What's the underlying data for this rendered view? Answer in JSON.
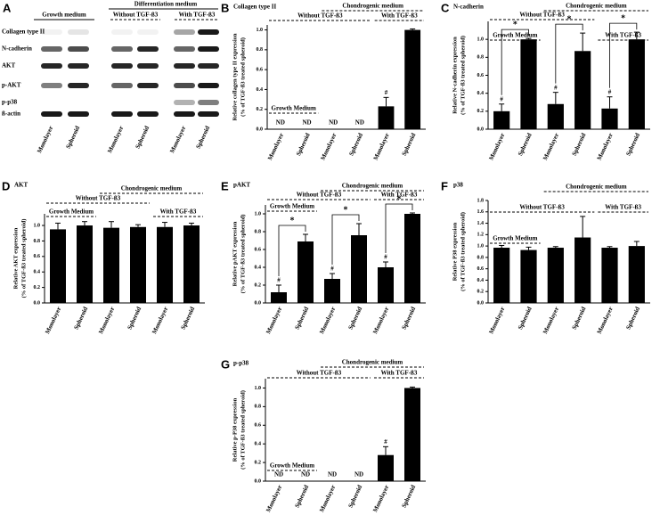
{
  "blot": {
    "panel": "A",
    "headers": {
      "growth": "Growth medium",
      "diff": "Differentiation medium",
      "without": "Without TGF-ß3",
      "with": "With TGF-ß3"
    },
    "rows": [
      "Collagen type II",
      "N-cadherin",
      "AKT",
      "p-AKT",
      "p-p38",
      "ß-actin"
    ],
    "lanes": [
      "Monolayer",
      "Spheroid",
      "Monolayer",
      "Spheroid",
      "Monolayer",
      "Spheroid"
    ]
  },
  "chart_data": [
    {
      "type": "bar",
      "panel": "B",
      "title": "Collagen type II",
      "ylabel": [
        "Relative collagen type II expression",
        "(% of TGF-ß3 treated spheroid)"
      ],
      "categories": [
        "Monolayer",
        "Spheroid",
        "Monolayer",
        "Spheroid",
        "Monolayer",
        "Spheroid"
      ],
      "values": [
        0,
        0,
        0,
        0,
        0.23,
        1.0
      ],
      "errors": [
        0,
        0,
        0,
        0,
        0.09,
        0.01
      ],
      "color": "#000000",
      "ylim": [
        0,
        1.05
      ],
      "yticks": [
        {
          "value": 0,
          "label": "0.0"
        },
        0.2,
        0.4,
        0.6,
        0.8,
        {
          "value": 1,
          "label": "1.0"
        }
      ],
      "groups": {
        "growth": "Growth  Medium",
        "without": "Without TGF-ß3",
        "chondro": "Chondrogenic  medium",
        "with": "With TGF-ß3"
      },
      "bar_notes": [
        "ND",
        "ND",
        "ND",
        "ND",
        "#",
        null
      ],
      "pair_notes": [
        null,
        null,
        null
      ]
    },
    {
      "type": "bar",
      "panel": "C",
      "title": "N-cadherin",
      "ylabel": [
        "Relative N-cadherin expression",
        "(% of TGF-ß3 treated spheroid)"
      ],
      "categories": [
        "Monolayer",
        "Spheroid",
        "Monolayer",
        "Spheroid",
        "Monolayer",
        "Spheroid"
      ],
      "values": [
        0.2,
        1.0,
        0.28,
        0.87,
        0.23,
        1.0
      ],
      "errors": [
        0.08,
        0.01,
        0.13,
        0.2,
        0.13,
        0.08
      ],
      "color": "#000000",
      "ylim": [
        0,
        1.2
      ],
      "yticks": [
        {
          "value": 0,
          "label": "0.0"
        },
        0.2,
        0.4,
        0.6,
        0.8,
        {
          "value": 1,
          "label": "1.0"
        }
      ],
      "groups": {
        "growth": "Growth Medium",
        "without": "Without TGF-ß3",
        "chondro": "Chondrogenic  medium",
        "with": "With TGF-ß3"
      },
      "bar_notes": [
        "#",
        null,
        "#",
        null,
        "#",
        null
      ],
      "pair_notes": [
        "*",
        "*",
        "*"
      ]
    },
    {
      "type": "bar",
      "panel": "D",
      "title": "AKT",
      "ylabel": [
        "Relative AKT expression",
        "(% of TGF-ß3 treated spheroid)"
      ],
      "categories": [
        "Monolayer",
        "Spheroid",
        "Monolayer",
        "Spheroid",
        "Monolayer",
        "Spheroid"
      ],
      "values": [
        0.95,
        1.0,
        0.97,
        0.98,
        0.98,
        1.0
      ],
      "errors": [
        0.08,
        0.05,
        0.08,
        0.03,
        0.06,
        0.03
      ],
      "color": "#000000",
      "ylim": [
        0,
        1.15
      ],
      "yticks": [
        {
          "value": 0,
          "label": "0.0"
        },
        0.2,
        0.4,
        0.6,
        0.8,
        {
          "value": 1,
          "label": "1.0"
        }
      ],
      "groups": {
        "growth": "Growth Medium",
        "without": "Without TGF-ß3",
        "chondro": "Chondrogenic  medium",
        "with": "With TGF-ß3"
      },
      "bar_notes": [
        null,
        null,
        null,
        null,
        null,
        null
      ],
      "pair_notes": [
        null,
        null,
        null
      ]
    },
    {
      "type": "bar",
      "panel": "E",
      "title": "pAKT",
      "ylabel": [
        "Relative pAKT expression",
        "(% of TGF-ß3 treated spheroid)"
      ],
      "categories": [
        "Monolayer",
        "Spheroid",
        "Monolayer",
        "Spheroid",
        "Monolayer",
        "Spheroid"
      ],
      "values": [
        0.12,
        0.69,
        0.27,
        0.76,
        0.4,
        1.0
      ],
      "errors": [
        0.08,
        0.08,
        0.06,
        0.13,
        0.06,
        0.01
      ],
      "color": "#000000",
      "ylim": [
        0,
        1.1
      ],
      "yticks": [
        {
          "value": 0,
          "label": "0.0"
        },
        0.2,
        0.4,
        0.6,
        0.8,
        {
          "value": 1,
          "label": "1.0"
        }
      ],
      "groups": {
        "growth": "Growth  Medium",
        "without": "Without  TGF-ß3",
        "chondro": "Chondrogenic  medium",
        "with": "With TGF-ß3"
      },
      "bar_notes": [
        "#",
        null,
        "#",
        null,
        "#",
        null
      ],
      "pair_notes": [
        "*",
        "*",
        "*"
      ]
    },
    {
      "type": "bar",
      "panel": "F",
      "title": "p38",
      "ylabel": [
        "Relative P38 expression",
        "(% of TGF-ß3 treated spheroid)"
      ],
      "categories": [
        "Monolayer",
        "Spheroid",
        "Monolayer",
        "Spheroid",
        "Monolayer",
        "Spheroid"
      ],
      "values": [
        0.97,
        0.93,
        0.97,
        1.15,
        0.97,
        1.0
      ],
      "errors": [
        0.04,
        0.05,
        0.02,
        0.37,
        0.02,
        0.08
      ],
      "color": "#000000",
      "ylim": [
        0,
        1.8
      ],
      "yticks": [
        {
          "value": 0,
          "label": "0.0"
        },
        0.2,
        0.4,
        0.6,
        0.8,
        {
          "value": 1,
          "label": "1.0"
        },
        1.2,
        1.4,
        1.6,
        1.8
      ],
      "groups": {
        "growth": "Growth  Medium",
        "without": "Without TGF-ß3",
        "chondro": "Chondrogenic  medium",
        "with": "With TGF-ß3"
      },
      "bar_notes": [
        null,
        null,
        null,
        null,
        null,
        null
      ],
      "pair_notes": [
        null,
        null,
        null
      ]
    },
    {
      "type": "bar",
      "panel": "G",
      "title": "p-p38",
      "ylabel": [
        "Relative p-P38 expression",
        "(% of TGF-ß3 treated spheroid)"
      ],
      "categories": [
        "Monolayer",
        "Spheroid",
        "Monolayer",
        "Spheroid",
        "Monolayer",
        "Spheroid"
      ],
      "values": [
        0,
        0,
        0,
        0,
        0.28,
        1.0
      ],
      "errors": [
        0,
        0,
        0,
        0,
        0.09,
        0.01
      ],
      "color": "#000000",
      "ylim": [
        0,
        1.1
      ],
      "yticks": [
        {
          "value": 0,
          "label": "0.0"
        },
        0.2,
        0.4,
        0.6,
        0.8,
        {
          "value": 1,
          "label": "1.0"
        }
      ],
      "groups": {
        "growth": "Growth  Medium",
        "without": "Without  TGF-ß3",
        "chondro": "Chondrogenic  medium",
        "with": "With TGF-ß3"
      },
      "bar_notes": [
        "ND",
        "ND",
        "ND",
        "ND",
        "#",
        null
      ],
      "pair_notes": [
        null,
        null,
        null
      ]
    }
  ]
}
